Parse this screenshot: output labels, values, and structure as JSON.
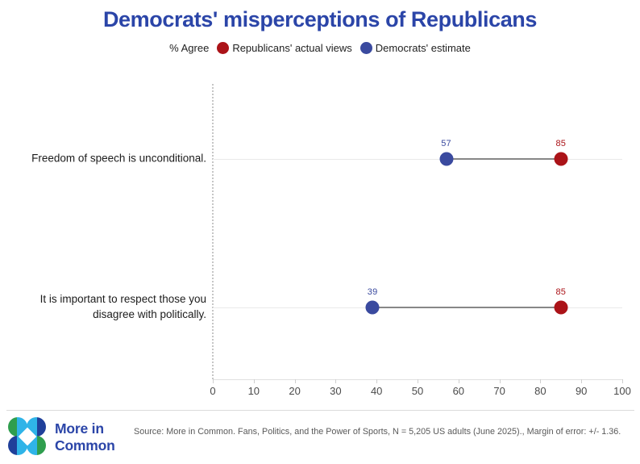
{
  "chart_data": {
    "type": "dumbbell",
    "title": "Democrats' misperceptions of Republicans",
    "legend_prefix": "% Agree",
    "legend_position": "top",
    "categories": [
      "Freedom of speech is unconditional.",
      "It is important to respect those you disagree with politically."
    ],
    "series": [
      {
        "name": "Republicans' actual views",
        "color": "#ab1318",
        "values": [
          85,
          85
        ]
      },
      {
        "name": "Democrats' estimate",
        "color": "#3a4a9f",
        "values": [
          57,
          39
        ]
      }
    ],
    "xlim": [
      0,
      100
    ],
    "x_ticks": [
      0,
      10,
      20,
      30,
      40,
      50,
      60,
      70,
      80,
      90,
      100
    ],
    "grid": "row-lines-only",
    "connector_color": "#878787",
    "xlabel": "",
    "ylabel": ""
  },
  "footer": {
    "logo_line1": "More in",
    "logo_line2": "Common",
    "source": "Source: More in Common. Fans, Politics, and the Power of Sports, N = 5,205 US adults (June 2025)., Margin of error: +/- 1.36."
  }
}
